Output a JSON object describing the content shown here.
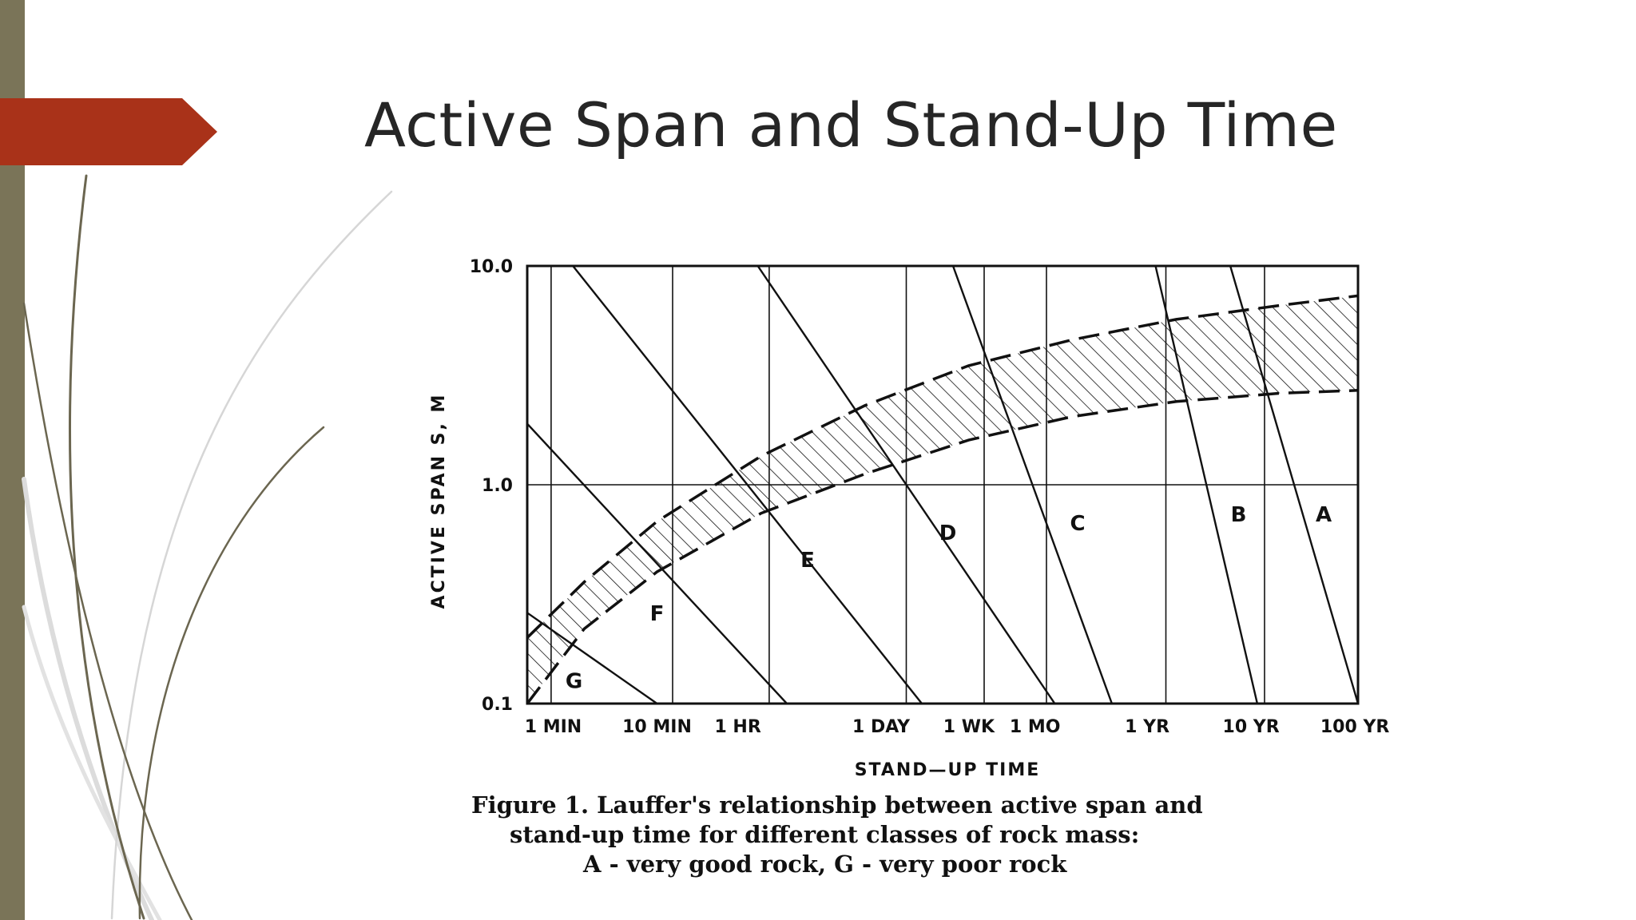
{
  "slide": {
    "title": "Active Span and Stand-Up Time"
  },
  "theme": {
    "side_bar": "#7a7458",
    "accent": "#a93219",
    "curve_dark": "#6b6650",
    "curve_light": "#d9d9d9"
  },
  "chart_data": {
    "type": "line",
    "title": "",
    "xlabel": "STAND—UP TIME",
    "ylabel": "ACTIVE SPAN S, M",
    "x_scale": "log",
    "y_scale": "log",
    "xlim_log10_min": [
      -0.25,
      7.75
    ],
    "ylim": [
      0.1,
      10.0
    ],
    "x_ticks": [
      {
        "label": "1 MIN",
        "log10_min": 0
      },
      {
        "label": "10 MIN",
        "log10_min": 1
      },
      {
        "label": "1 HR",
        "log10_min": 1.778
      },
      {
        "label": "1 DAY",
        "log10_min": 3.158
      },
      {
        "label": "1 WK",
        "log10_min": 4.003
      },
      {
        "label": "1 MO",
        "log10_min": 4.64
      },
      {
        "label": "1 YR",
        "log10_min": 5.72
      },
      {
        "label": "10 YR",
        "log10_min": 6.72
      },
      {
        "label": "100 YR",
        "log10_min": 7.72
      }
    ],
    "y_ticks": [
      {
        "label": "10.0",
        "value": 10
      },
      {
        "label": "1.0",
        "value": 1
      },
      {
        "label": "0.1",
        "value": 0.1
      }
    ],
    "grid_x_log10_min": [
      -0.02,
      1.15,
      2.08,
      3.4,
      4.15,
      4.75,
      5.9,
      6.85
    ],
    "class_lines": [
      {
        "name": "G",
        "from": [
          -0.25,
          0.26
        ],
        "to": [
          1.0,
          0.1
        ]
      },
      {
        "name": "F",
        "from": [
          -0.25,
          1.9
        ],
        "to": [
          2.25,
          0.1
        ]
      },
      {
        "name": "E",
        "from": [
          0.19,
          10.0
        ],
        "to": [
          3.55,
          0.1
        ]
      },
      {
        "name": "D",
        "from": [
          1.97,
          10.0
        ],
        "to": [
          4.83,
          0.1
        ]
      },
      {
        "name": "C",
        "from": [
          3.85,
          10.0
        ],
        "to": [
          5.38,
          0.1
        ]
      },
      {
        "name": "B",
        "from": [
          5.8,
          10.0
        ],
        "to": [
          6.78,
          0.1
        ]
      },
      {
        "name": "A",
        "from": [
          6.52,
          10.0
        ],
        "to": [
          7.75,
          0.1
        ]
      }
    ],
    "zone_labels": [
      {
        "text": "G",
        "at": [
          0.2,
          0.118
        ]
      },
      {
        "text": "F",
        "at": [
          1.0,
          0.24
        ]
      },
      {
        "text": "E",
        "at": [
          2.45,
          0.42
        ]
      },
      {
        "text": "D",
        "at": [
          3.8,
          0.56
        ]
      },
      {
        "text": "C",
        "at": [
          5.05,
          0.62
        ]
      },
      {
        "text": "B",
        "at": [
          6.6,
          0.68
        ]
      },
      {
        "text": "A",
        "at": [
          7.42,
          0.68
        ]
      }
    ],
    "envelope_upper": [
      [
        -0.25,
        0.2
      ],
      [
        0.3,
        0.36
      ],
      [
        1.0,
        0.68
      ],
      [
        2.0,
        1.35
      ],
      [
        3.0,
        2.3
      ],
      [
        4.0,
        3.5
      ],
      [
        5.0,
        4.6
      ],
      [
        6.0,
        5.7
      ],
      [
        7.0,
        6.6
      ],
      [
        7.75,
        7.3
      ]
    ],
    "envelope_lower": [
      [
        -0.25,
        0.1
      ],
      [
        0.3,
        0.22
      ],
      [
        1.0,
        0.4
      ],
      [
        2.0,
        0.74
      ],
      [
        3.0,
        1.12
      ],
      [
        4.0,
        1.6
      ],
      [
        5.0,
        2.05
      ],
      [
        6.0,
        2.4
      ],
      [
        7.0,
        2.62
      ],
      [
        7.75,
        2.7
      ]
    ]
  },
  "caption": {
    "line1": "Figure 1.  Lauffer's relationship between active span and",
    "line2": "stand-up time for different classes of rock mass:",
    "line3": "A - very good rock, G - very poor rock"
  }
}
